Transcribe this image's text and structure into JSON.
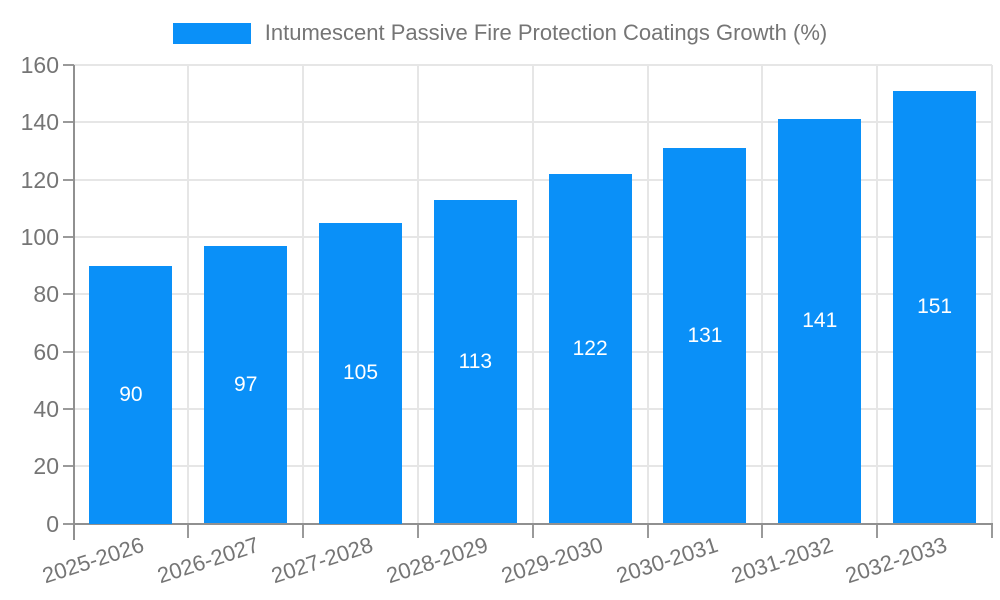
{
  "legend": {
    "label": "Intumescent Passive Fire Protection Coatings Growth (%)"
  },
  "chart_data": {
    "type": "bar",
    "title": "Intumescent Passive Fire Protection Coatings Growth (%)",
    "categories": [
      "2025-2026",
      "2026-2027",
      "2027-2028",
      "2028-2029",
      "2029-2030",
      "2030-2031",
      "2031-2032",
      "2032-2033"
    ],
    "values": [
      90,
      97,
      105,
      113,
      122,
      131,
      141,
      151
    ],
    "xlabel": "",
    "ylabel": "",
    "ylim": [
      0,
      160
    ],
    "yticks": [
      0,
      20,
      40,
      60,
      80,
      100,
      120,
      140,
      160
    ],
    "grid": true,
    "legend_position": "top",
    "value_labels": "inside-center-white"
  },
  "colors": {
    "bar": "#0a90f8",
    "axis_line": "#909090",
    "tick_mark": "#9a9a9a",
    "tick_label": "#757575",
    "legend_text": "#757575",
    "gridline": "#e6e6e6",
    "value_label": "#ffffff",
    "background": "#ffffff"
  }
}
